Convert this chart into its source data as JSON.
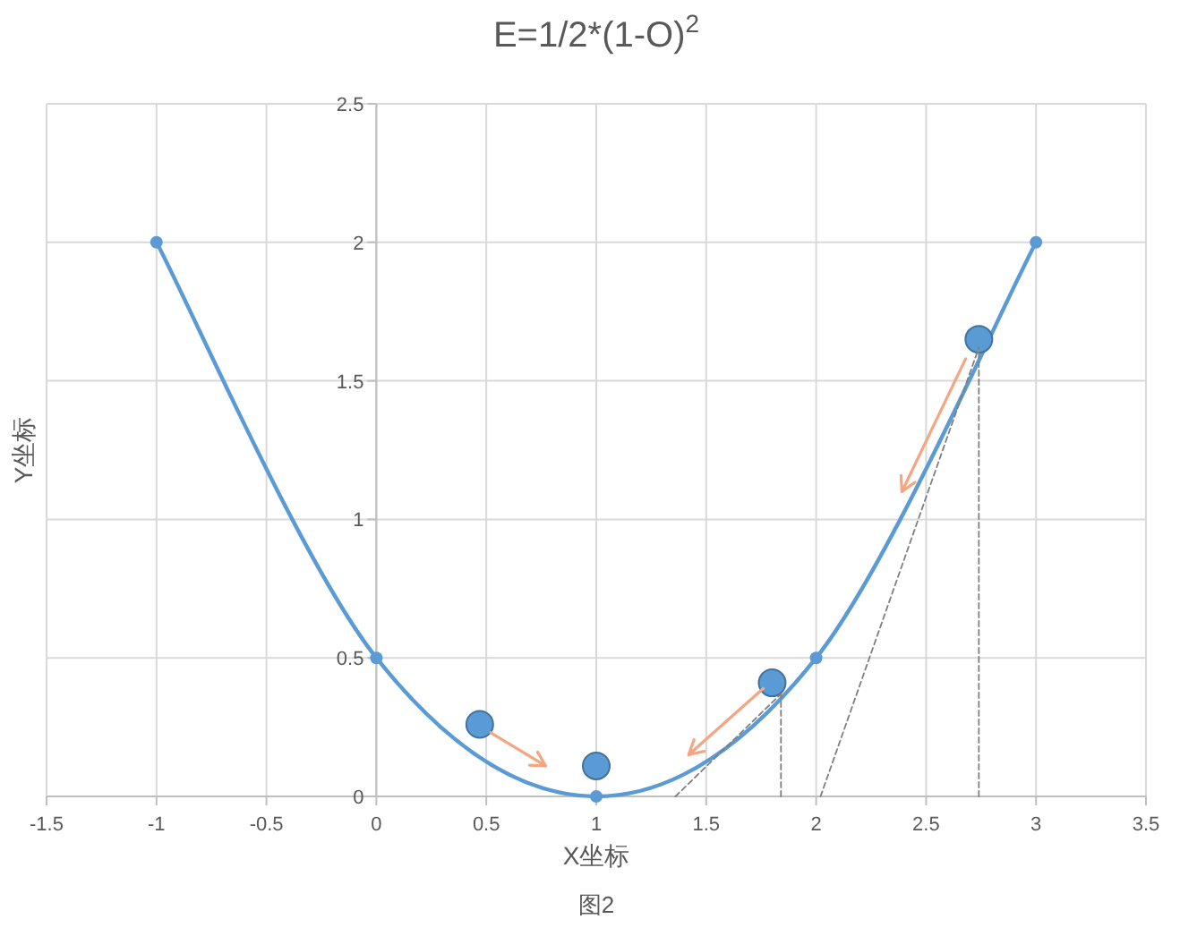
{
  "chart_data": {
    "type": "line",
    "title": "E=1/2*(1-O)$^{2}$",
    "xlabel": "X坐标",
    "ylabel": "Y坐标",
    "annotations": [
      "图2"
    ],
    "xlim": [
      -1.5,
      3.5
    ],
    "xticks": [
      -1.5,
      -1,
      -0.5,
      0,
      0.5,
      1,
      1.5,
      2,
      2.5,
      3,
      3.5
    ],
    "ylim": [
      0,
      2.5
    ],
    "yticks": [
      0,
      0.5,
      1,
      1.5,
      2,
      2.5
    ],
    "grid": true,
    "series": [
      {
        "color": "#5b9bd5",
        "marker": "circle",
        "line_style": "solid",
        "x": [
          -1,
          0,
          1,
          2,
          3
        ],
        "values": [
          2,
          0.5,
          0,
          0.5,
          2
        ]
      },
      {
        "type": "scatter",
        "color": "#5b9bd5",
        "marker": "circle",
        "x": [
          0.47,
          1.0,
          1.8,
          2.74
        ],
        "values": [
          0.26,
          0.11,
          0.41,
          1.65
        ]
      },
      {
        "type": "line",
        "color": "#7f7f7f",
        "marker": "none",
        "line_style": "dashed",
        "x": [
          1.36,
          1.84
        ],
        "values": [
          0,
          0.37
        ]
      },
      {
        "type": "line",
        "color": "#7f7f7f",
        "marker": "none",
        "line_style": "dashed",
        "x": [
          1.84,
          1.84
        ],
        "values": [
          0,
          0.37
        ]
      },
      {
        "type": "line",
        "color": "#7f7f7f",
        "marker": "none",
        "line_style": "dashed",
        "x": [
          2.02,
          2.74
        ],
        "values": [
          0,
          1.62
        ]
      },
      {
        "type": "line",
        "color": "#7f7f7f",
        "marker": "none",
        "line_style": "dashed",
        "x": [
          2.74,
          2.74
        ],
        "values": [
          0,
          1.62
        ]
      }
    ]
  }
}
